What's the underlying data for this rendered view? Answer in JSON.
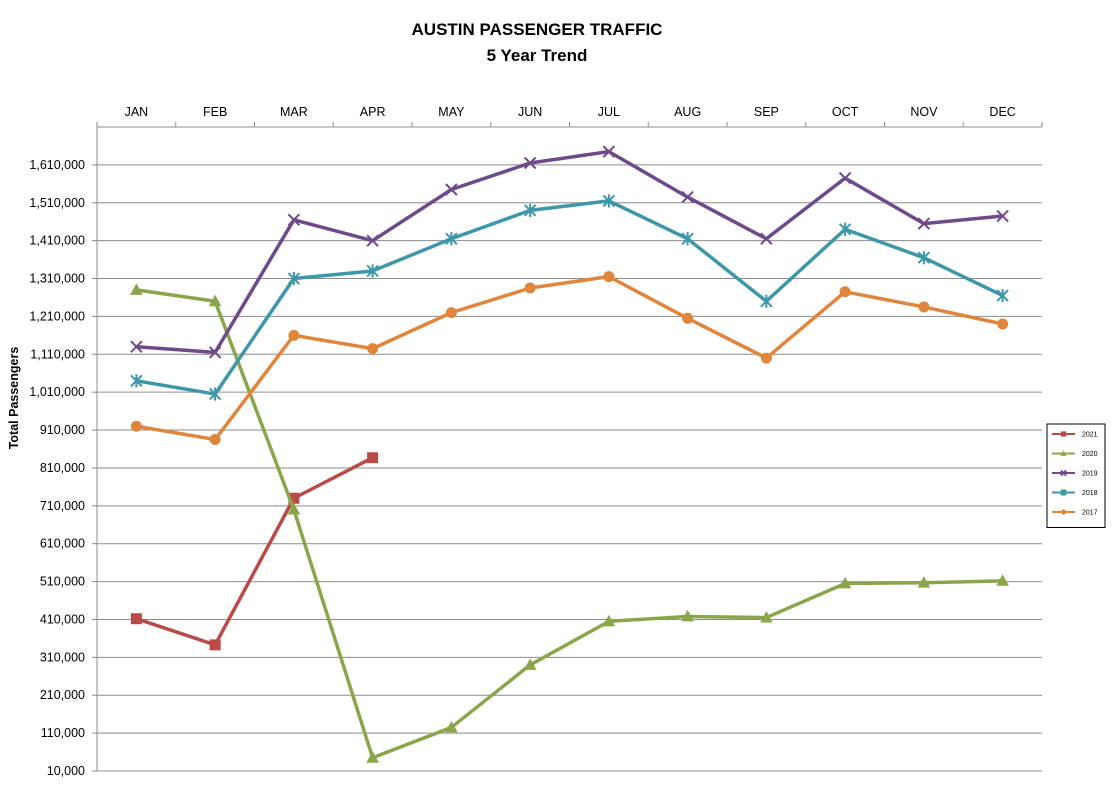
{
  "chart_data": {
    "type": "line",
    "title": "AUSTIN PASSENGER TRAFFIC",
    "subtitle": "5 Year Trend",
    "xlabel": "",
    "ylabel": "Total Passengers",
    "categories": [
      "JAN",
      "FEB",
      "MAR",
      "APR",
      "MAY",
      "JUN",
      "JUL",
      "AUG",
      "SEP",
      "OCT",
      "NOV",
      "DEC"
    ],
    "x_axis_position": "top",
    "yticks": [
      10000,
      110000,
      210000,
      310000,
      410000,
      510000,
      610000,
      710000,
      810000,
      910000,
      1010000,
      1110000,
      1210000,
      1310000,
      1410000,
      1510000,
      1610000
    ],
    "ytick_labels": [
      "10,000",
      "110,000",
      "210,000",
      "310,000",
      "410,000",
      "510,000",
      "610,000",
      "710,000",
      "810,000",
      "910,000",
      "1,010,000",
      "1,110,000",
      "1,210,000",
      "1,310,000",
      "1,410,000",
      "1,510,000",
      "1,610,000"
    ],
    "ylim": [
      10000,
      1710000
    ],
    "grid": true,
    "legend_position": "right",
    "series": [
      {
        "name": "2021",
        "color": "#B94A48",
        "marker": "square",
        "values": [
          412000,
          343000,
          730000,
          837000,
          null,
          null,
          null,
          null,
          null,
          null,
          null,
          null
        ]
      },
      {
        "name": "2020",
        "color": "#8BA64A",
        "marker": "triangle",
        "values": [
          1280000,
          1250000,
          700000,
          45000,
          125000,
          290000,
          405000,
          418000,
          415000,
          505000,
          507000,
          512000
        ]
      },
      {
        "name": "2019",
        "color": "#6E4A8A",
        "marker": "x",
        "values": [
          1130000,
          1115000,
          1465000,
          1410000,
          1545000,
          1615000,
          1645000,
          1525000,
          1415000,
          1575000,
          1455000,
          1475000
        ]
      },
      {
        "name": "2018",
        "color": "#3E97A8",
        "marker": "asterisk",
        "values": [
          1040000,
          1005000,
          1310000,
          1330000,
          1415000,
          1490000,
          1515000,
          1415000,
          1250000,
          1440000,
          1365000,
          1265000
        ]
      },
      {
        "name": "2017",
        "color": "#E0853C",
        "marker": "circle",
        "values": [
          920000,
          885000,
          1160000,
          1125000,
          1220000,
          1285000,
          1315000,
          1205000,
          1100000,
          1275000,
          1235000,
          1190000
        ]
      }
    ]
  }
}
